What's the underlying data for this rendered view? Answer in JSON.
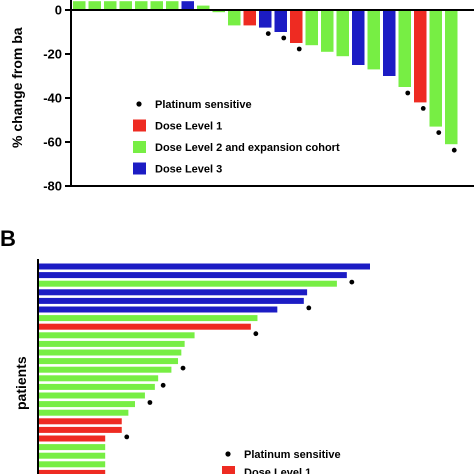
{
  "colors": {
    "red": "#ee2b22",
    "green": "#77ee44",
    "blue": "#1c1cc4",
    "marker": "#000000"
  },
  "panel_a": {
    "ylabel": "% change from ba",
    "legend": [
      {
        "kind": "marker",
        "label": "Platinum sensitive"
      },
      {
        "kind": "red",
        "label": "Dose Level 1"
      },
      {
        "kind": "green",
        "label": "Dose Level 2 and expansion cohort"
      },
      {
        "kind": "blue",
        "label": "Dose Level 3"
      }
    ]
  },
  "panel_b": {
    "panel_label": "B",
    "ylabel": "patients",
    "legend": [
      {
        "kind": "marker",
        "label": "Platinum sensitive"
      },
      {
        "kind": "red",
        "label": "Dose Level 1"
      }
    ]
  },
  "chart_data": [
    {
      "type": "bar",
      "title": "",
      "ylabel": "% change from ba",
      "ylim": [
        -80,
        0
      ],
      "yticks": [
        0,
        -20,
        -40,
        -60,
        -80
      ],
      "grid": false,
      "legend_position": "lower-left",
      "series": [
        {
          "values": [
            4,
            4,
            4,
            4,
            4,
            4,
            4,
            4,
            2,
            -1,
            -7,
            -7,
            -8,
            -10,
            -15,
            -16,
            -19,
            -21,
            -25,
            -27,
            -30,
            -35,
            -42,
            -53,
            -61
          ],
          "dose_level": [
            "green",
            "green",
            "green",
            "green",
            "green",
            "green",
            "green",
            "blue",
            "green",
            "green",
            "green",
            "red",
            "blue",
            "blue",
            "red",
            "green",
            "green",
            "green",
            "blue",
            "green",
            "blue",
            "green",
            "red",
            "green",
            "green"
          ],
          "platinum_sensitive": [
            false,
            false,
            false,
            false,
            false,
            false,
            false,
            false,
            false,
            false,
            false,
            false,
            true,
            true,
            true,
            false,
            false,
            false,
            false,
            false,
            false,
            true,
            true,
            true,
            true
          ]
        }
      ]
    },
    {
      "type": "bar",
      "orientation": "horizontal",
      "title": "",
      "ylabel": "patients",
      "grid": false,
      "legend_position": "bottom-right",
      "series": [
        {
          "values": [
            100,
            93,
            90,
            81,
            80,
            72,
            66,
            64,
            47,
            44,
            43,
            42,
            40,
            36,
            35,
            32,
            29,
            27,
            25,
            25,
            20,
            20,
            20,
            20,
            20
          ],
          "dose_level": [
            "blue",
            "blue",
            "green",
            "blue",
            "blue",
            "blue",
            "green",
            "red",
            "green",
            "green",
            "green",
            "green",
            "green",
            "green",
            "green",
            "green",
            "green",
            "green",
            "red",
            "red",
            "red",
            "green",
            "green",
            "green",
            "red"
          ],
          "platinum_sensitive": [
            false,
            true,
            false,
            false,
            true,
            false,
            false,
            true,
            false,
            false,
            false,
            true,
            false,
            true,
            false,
            true,
            false,
            false,
            false,
            true,
            false,
            false,
            false,
            false,
            false
          ]
        }
      ]
    }
  ]
}
